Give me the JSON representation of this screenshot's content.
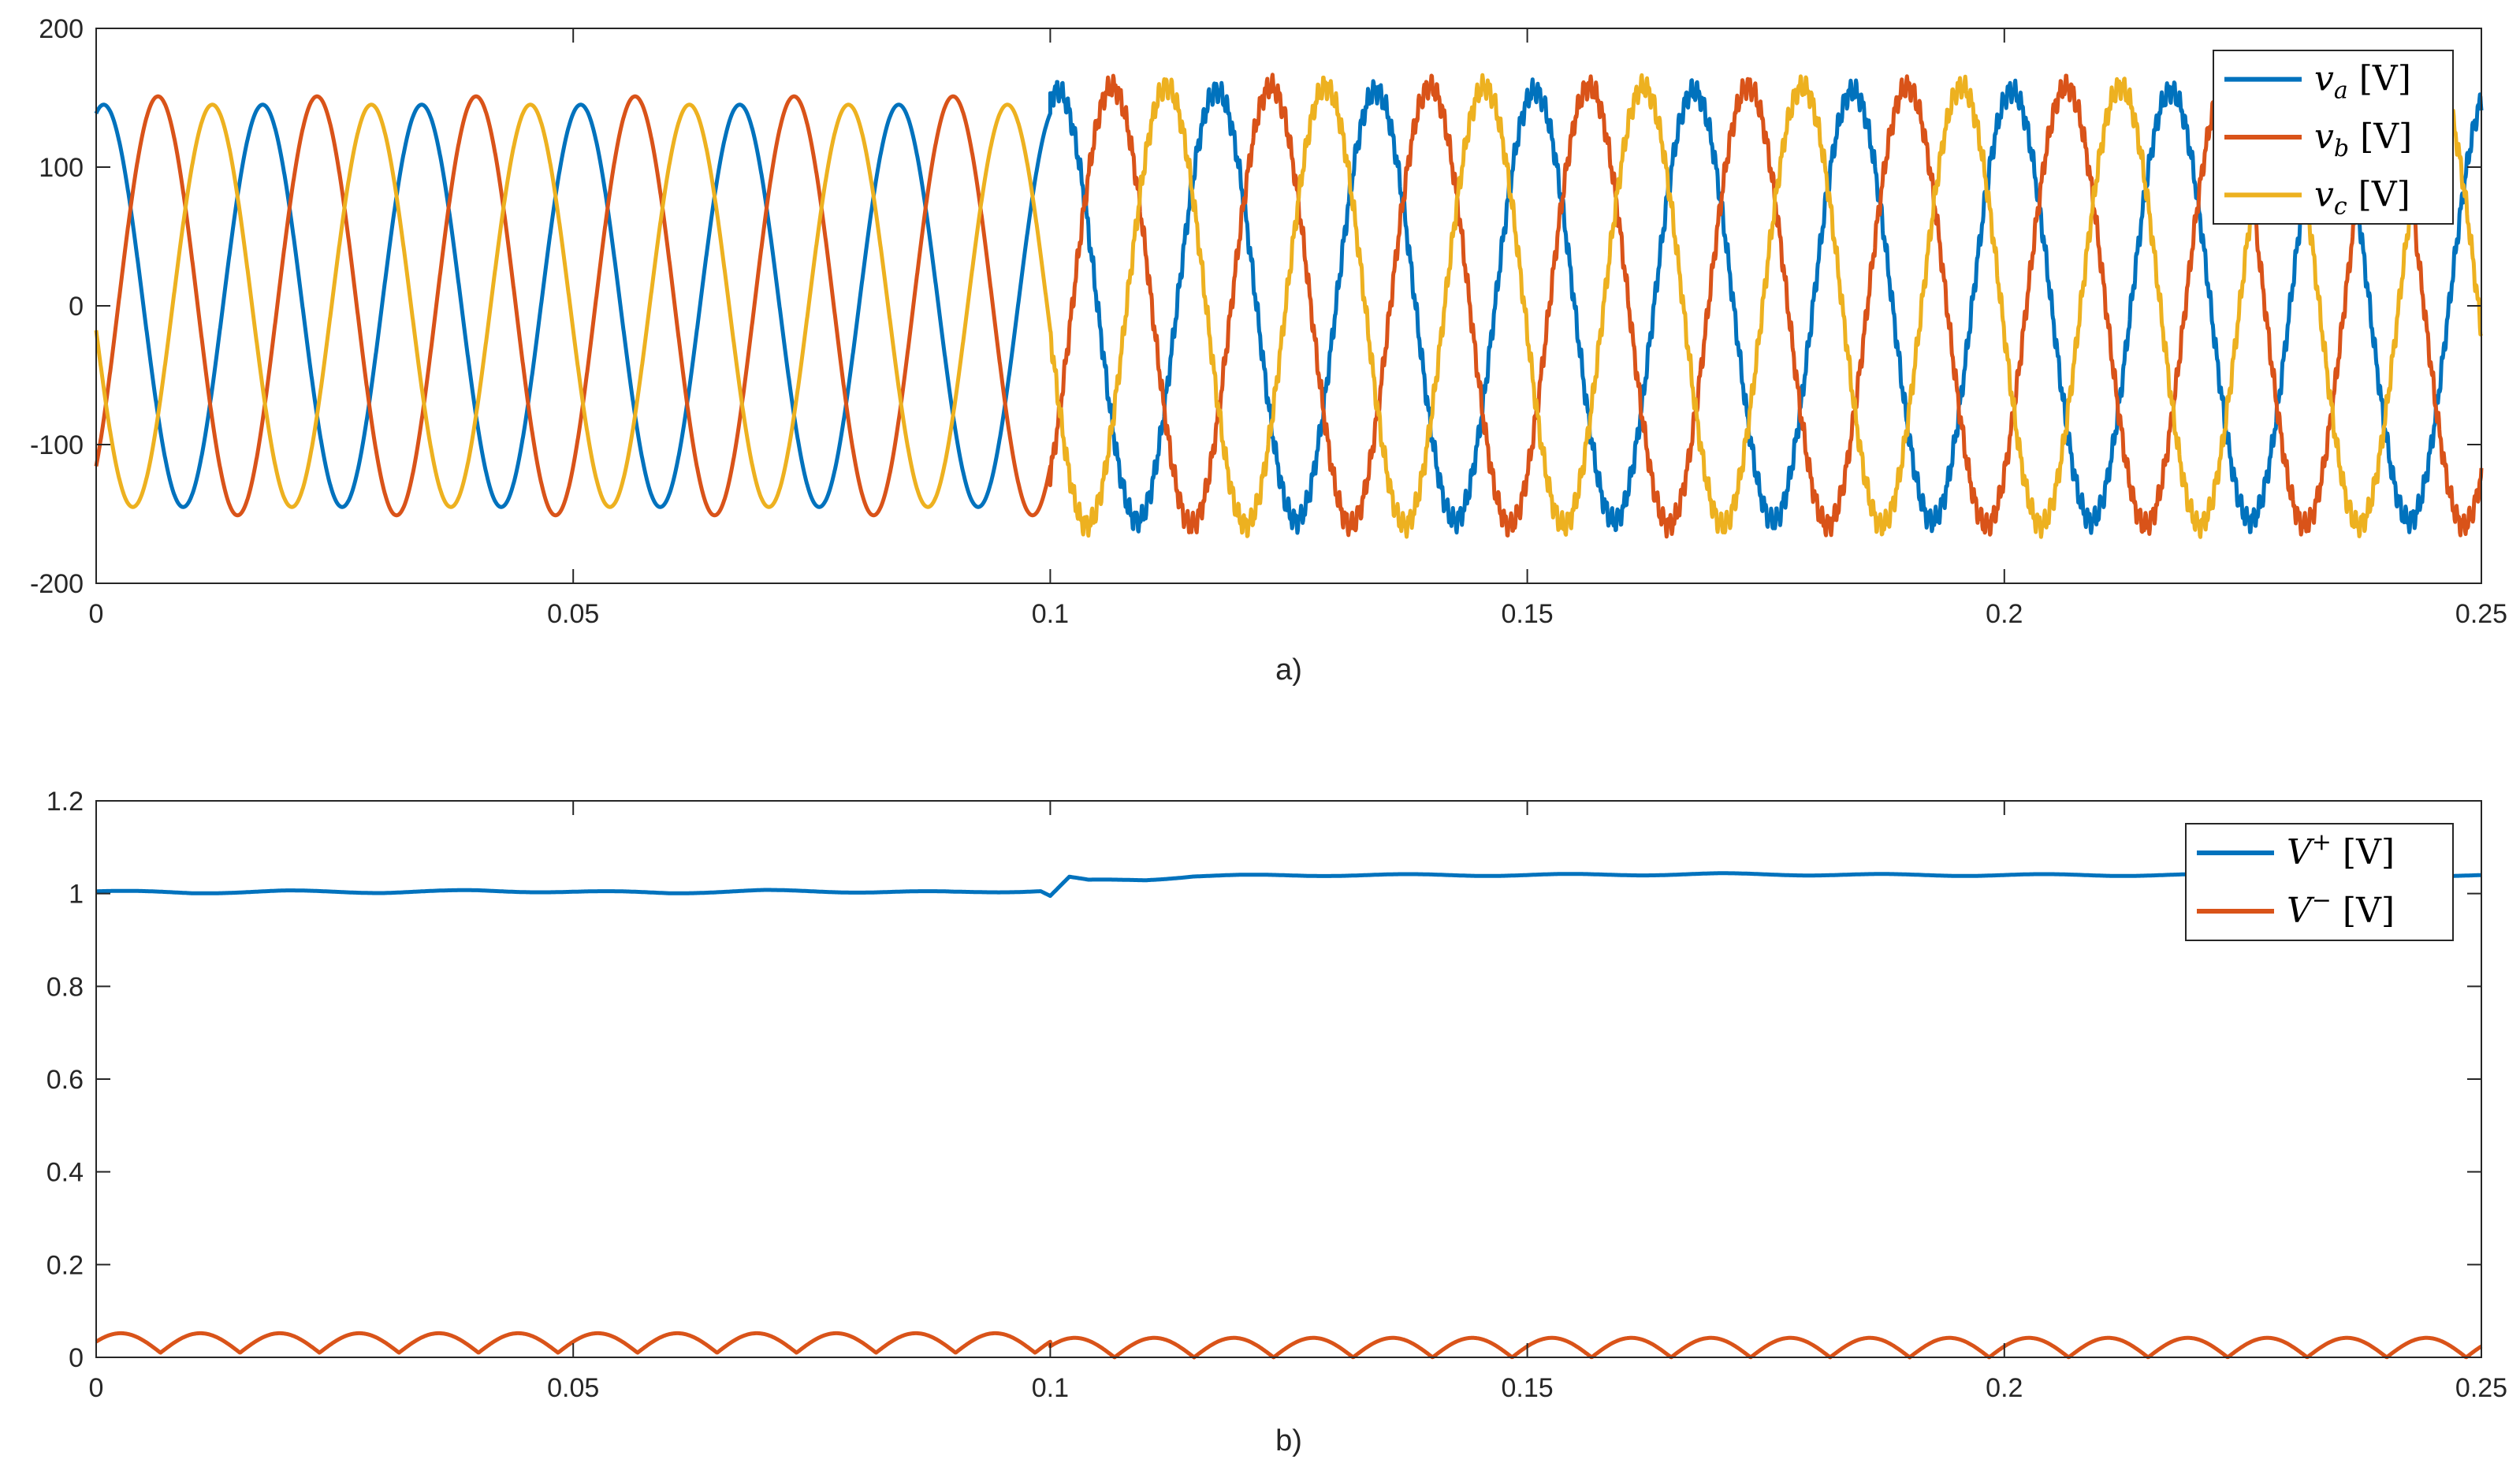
{
  "colors": {
    "blue": "#0072BD",
    "orange": "#D95319",
    "yellow": "#EDB120",
    "axis": "#262626"
  },
  "chart_data": [
    {
      "type": "line",
      "caption": "a)",
      "xlim": [
        0,
        0.25
      ],
      "ylim": [
        -200,
        200
      ],
      "xticks": [
        "0",
        "0.05",
        "0.1",
        "0.15",
        "0.2",
        "0.25"
      ],
      "yticks": [
        "200",
        "100",
        "0",
        "-100",
        "-200"
      ],
      "grid": false,
      "legend_placement": "top-right",
      "series": [
        {
          "id": "va",
          "legend_base": "v",
          "legend_sub": "a",
          "legend_unit": "[V]",
          "color": "#0072BD",
          "frequency_hz": 60,
          "phase_deg": 73,
          "segments": [
            {
              "t_start": 0,
              "t_end": 0.1,
              "amplitude": 145
            },
            {
              "t_start": 0.1,
              "t_end": 0.25,
              "amplitude": 155
            }
          ]
        },
        {
          "id": "vb",
          "legend_base": "v",
          "legend_sub": "b",
          "legend_unit": "[V]",
          "color": "#D95319",
          "frequency_hz": 60,
          "phase_deg": -50,
          "segments": [
            {
              "t_start": 0,
              "t_end": 0.1,
              "amplitude": 151
            },
            {
              "t_start": 0.1,
              "t_end": 0.25,
              "amplitude": 158
            }
          ]
        },
        {
          "id": "vc",
          "legend_base": "v",
          "legend_sub": "c",
          "legend_unit": "[V]",
          "color": "#EDB120",
          "frequency_hz": 60,
          "phase_deg": -173,
          "segments": [
            {
              "t_start": 0,
              "t_end": 0.1,
              "amplitude": 145
            },
            {
              "t_start": 0.1,
              "t_end": 0.25,
              "amplitude": 158
            }
          ]
        }
      ]
    },
    {
      "type": "line",
      "caption": "b)",
      "xlim": [
        0,
        0.25
      ],
      "ylim": [
        0,
        1.2
      ],
      "xticks": [
        "0",
        "0.05",
        "0.1",
        "0.15",
        "0.2",
        "0.25"
      ],
      "yticks": [
        "1.2",
        "1",
        "0.8",
        "0.6",
        "0.4",
        "0.2",
        "0"
      ],
      "grid": false,
      "legend_placement": "top-right",
      "series": [
        {
          "id": "vpos",
          "legend_base": "V",
          "legend_sup": "+",
          "legend_unit": "[V]",
          "color": "#0072BD",
          "points": [
            [
              0,
              1.005
            ],
            [
              0.01,
              1.002
            ],
            [
              0.02,
              1.005
            ],
            [
              0.03,
              1.003
            ],
            [
              0.04,
              1.006
            ],
            [
              0.05,
              1.004
            ],
            [
              0.06,
              1.002
            ],
            [
              0.07,
              1.006
            ],
            [
              0.08,
              1.004
            ],
            [
              0.09,
              1.003
            ],
            [
              0.099,
              1.006
            ],
            [
              0.1,
              0.995
            ],
            [
              0.102,
              1.035
            ],
            [
              0.104,
              1.028
            ],
            [
              0.11,
              1.03
            ],
            [
              0.115,
              1.038
            ],
            [
              0.13,
              1.04
            ],
            [
              0.15,
              1.04
            ],
            [
              0.17,
              1.042
            ],
            [
              0.19,
              1.04
            ],
            [
              0.21,
              1.04
            ],
            [
              0.23,
              1.04
            ],
            [
              0.25,
              1.04
            ]
          ]
        },
        {
          "id": "vneg",
          "legend_base": "V",
          "legend_sup": "−",
          "legend_unit": "[V]",
          "color": "#D95319",
          "ripple": {
            "frequency_hz": 120,
            "segments": [
              {
                "t_start": 0,
                "t_end": 0.1,
                "min": 0.01,
                "max": 0.052
              },
              {
                "t_start": 0.1,
                "t_end": 0.25,
                "min": 0.0,
                "max": 0.042
              }
            ]
          }
        }
      ]
    }
  ]
}
